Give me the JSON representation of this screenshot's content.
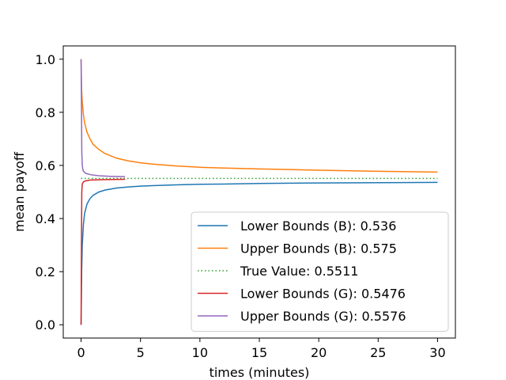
{
  "chart_data": {
    "type": "line",
    "title": "",
    "xlabel": "times (minutes)",
    "ylabel": "mean payoff",
    "xlim": [
      -1.5,
      31.5
    ],
    "ylim": [
      -0.05,
      1.05
    ],
    "x_ticks": [
      0,
      5,
      10,
      15,
      20,
      25,
      30
    ],
    "x_tick_labels": [
      "0",
      "5",
      "10",
      "15",
      "20",
      "25",
      "30"
    ],
    "y_ticks": [
      0.0,
      0.2,
      0.4,
      0.6,
      0.8,
      1.0
    ],
    "y_tick_labels": [
      "0.0",
      "0.2",
      "0.4",
      "0.6",
      "0.8",
      "1.0"
    ],
    "grid": false,
    "legend_position": "lower-right",
    "series": [
      {
        "name": "Lower Bounds (B): 0.536",
        "color": "#1f77b4",
        "style": "solid",
        "x": [
          0,
          0.05,
          0.1,
          0.2,
          0.3,
          0.5,
          0.75,
          1,
          1.5,
          2,
          3,
          4,
          5,
          6,
          8,
          10,
          12,
          15,
          20,
          25,
          30
        ],
        "y": [
          0.0,
          0.2,
          0.3,
          0.38,
          0.42,
          0.455,
          0.475,
          0.487,
          0.5,
          0.507,
          0.515,
          0.519,
          0.522,
          0.524,
          0.527,
          0.529,
          0.53,
          0.532,
          0.534,
          0.535,
          0.536
        ]
      },
      {
        "name": "Upper Bounds (B): 0.575",
        "color": "#ff7f0e",
        "style": "solid",
        "x": [
          0,
          0.05,
          0.1,
          0.2,
          0.3,
          0.5,
          0.75,
          1,
          1.5,
          2,
          3,
          4,
          5,
          6,
          8,
          10,
          12,
          15,
          20,
          25,
          30
        ],
        "y": [
          1.0,
          0.88,
          0.84,
          0.79,
          0.76,
          0.725,
          0.7,
          0.68,
          0.66,
          0.645,
          0.627,
          0.617,
          0.61,
          0.605,
          0.598,
          0.593,
          0.59,
          0.587,
          0.582,
          0.578,
          0.575
        ]
      },
      {
        "name": "True Value: 0.5511",
        "color": "#2ca02c",
        "style": "dotted",
        "x": [
          0,
          30
        ],
        "y": [
          0.5511,
          0.5511
        ]
      },
      {
        "name": "Lower Bounds (G): 0.5476",
        "color": "#d62728",
        "style": "solid",
        "x": [
          0,
          0.03,
          0.06,
          0.1,
          0.2,
          0.4,
          0.8,
          1.5,
          2.5,
          3.7
        ],
        "y": [
          0.0,
          0.3,
          0.5,
          0.53,
          0.538,
          0.542,
          0.545,
          0.546,
          0.547,
          0.5476
        ]
      },
      {
        "name": "Upper Bounds (G): 0.5576",
        "color": "#9467bd",
        "style": "solid",
        "x": [
          0,
          0.03,
          0.06,
          0.1,
          0.15,
          0.2,
          0.4,
          0.8,
          1.5,
          2.5,
          3.7
        ],
        "y": [
          1.0,
          0.85,
          0.65,
          0.6,
          0.585,
          0.578,
          0.57,
          0.565,
          0.561,
          0.559,
          0.5576
        ]
      }
    ]
  }
}
